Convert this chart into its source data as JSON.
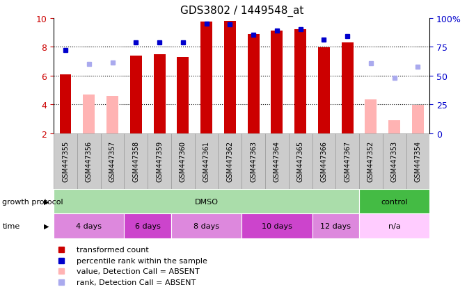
{
  "title": "GDS3802 / 1449548_at",
  "samples": [
    "GSM447355",
    "GSM447356",
    "GSM447357",
    "GSM447358",
    "GSM447359",
    "GSM447360",
    "GSM447361",
    "GSM447362",
    "GSM447363",
    "GSM447364",
    "GSM447365",
    "GSM447366",
    "GSM447367",
    "GSM447352",
    "GSM447353",
    "GSM447354"
  ],
  "bar_values": [
    6.1,
    4.7,
    4.6,
    7.4,
    7.5,
    7.3,
    9.75,
    9.8,
    8.9,
    9.15,
    9.2,
    7.95,
    8.3,
    4.35,
    2.9,
    3.95
  ],
  "bar_absent": [
    false,
    true,
    true,
    false,
    false,
    false,
    false,
    false,
    false,
    false,
    false,
    false,
    false,
    true,
    true,
    true
  ],
  "rank_values": [
    7.75,
    6.8,
    6.9,
    8.3,
    8.3,
    8.3,
    9.6,
    9.55,
    8.85,
    9.15,
    9.2,
    8.5,
    8.75,
    6.85,
    5.85,
    6.6
  ],
  "rank_absent": [
    false,
    true,
    true,
    false,
    false,
    false,
    false,
    false,
    false,
    false,
    false,
    false,
    false,
    true,
    true,
    true
  ],
  "ylim": [
    2,
    10
  ],
  "y2lim": [
    0,
    100
  ],
  "yticks": [
    2,
    4,
    6,
    8,
    10
  ],
  "y2ticks": [
    0,
    25,
    50,
    75,
    100
  ],
  "dotted_lines": [
    4,
    6,
    8
  ],
  "bar_color_present": "#cc0000",
  "bar_color_absent": "#ffb3b3",
  "rank_color_present": "#0000cc",
  "rank_color_absent": "#aaaaee",
  "sample_box_color": "#cccccc",
  "sample_box_edge": "#999999",
  "protocol_groups": [
    {
      "label": "DMSO",
      "start": 0,
      "end": 13,
      "color": "#aaddaa"
    },
    {
      "label": "control",
      "start": 13,
      "end": 16,
      "color": "#44bb44"
    }
  ],
  "time_groups": [
    {
      "label": "4 days",
      "start": 0,
      "end": 3,
      "color": "#dd88dd"
    },
    {
      "label": "6 days",
      "start": 3,
      "end": 5,
      "color": "#cc44cc"
    },
    {
      "label": "8 days",
      "start": 5,
      "end": 8,
      "color": "#dd88dd"
    },
    {
      "label": "10 days",
      "start": 8,
      "end": 11,
      "color": "#cc44cc"
    },
    {
      "label": "12 days",
      "start": 11,
      "end": 13,
      "color": "#dd88dd"
    },
    {
      "label": "n/a",
      "start": 13,
      "end": 16,
      "color": "#ffccff"
    }
  ],
  "legend_items": [
    {
      "label": "transformed count",
      "color": "#cc0000"
    },
    {
      "label": "percentile rank within the sample",
      "color": "#0000cc"
    },
    {
      "label": "value, Detection Call = ABSENT",
      "color": "#ffb3b3"
    },
    {
      "label": "rank, Detection Call = ABSENT",
      "color": "#aaaaee"
    }
  ],
  "bar_color_red": "#cc0000",
  "y2label_color": "#0000cc",
  "bar_width": 0.5,
  "rank_marker_size": 5,
  "background_color": "#ffffff",
  "tick_fontsize": 9,
  "title_fontsize": 11,
  "sample_fontsize": 7,
  "row_fontsize": 8
}
